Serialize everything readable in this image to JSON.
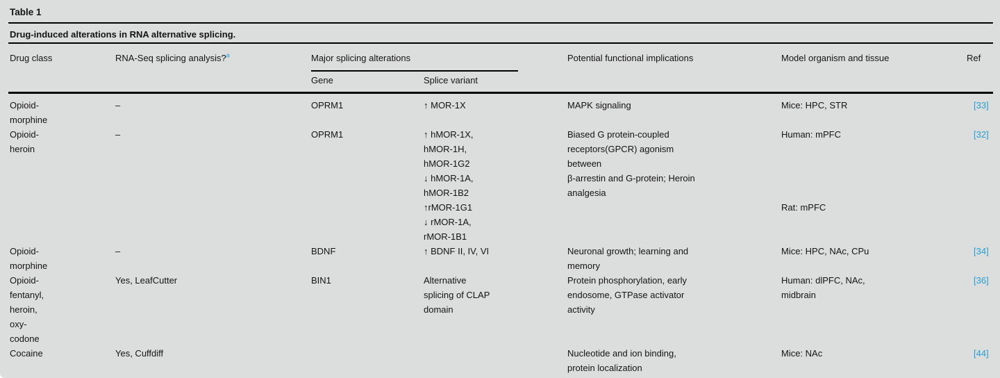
{
  "page": {
    "background_color": "#dcdddd",
    "rule_color": "#000000",
    "link_color": "#279fd5"
  },
  "header": {
    "table_label": "Table 1",
    "caption": "Drug-induced alterations in RNA alternative splicing.",
    "columns": {
      "drug_class": "Drug class",
      "rna_seq": "RNA-Seq splicing analysis?",
      "rna_seq_footnote_marker": "a",
      "major_group": "Major splicing alterations",
      "gene": "Gene",
      "splice_variant": "Splice variant",
      "implications": "Potential functional implications",
      "model": "Model organism and tissue",
      "ref": "Ref"
    }
  },
  "table": {
    "rows": [
      {
        "drug_class": "Opioid-\nmorphine",
        "rna_seq": "–",
        "gene": "OPRM1",
        "splice_variant": "↑ MOR-1X",
        "implications": "MAPK signaling",
        "model": "Mice: HPC, STR",
        "ref": "[33]"
      },
      {
        "drug_class": "Opioid-\nheroin",
        "rna_seq": "–",
        "gene": "OPRM1",
        "splice_variant": "↑ hMOR-1X,\nhMOR-1H,\nhMOR-1G2\n↓ hMOR-1A,\nhMOR-1B2\n↑rMOR-1G1\n↓ rMOR-1A,\nrMOR-1B1",
        "implications": "Biased G protein-coupled\nreceptors(GPCR) agonism\nbetween\nβ-arrestin and G-protein; Heroin\nanalgesia",
        "model": "Human: mPFC\n\n\n\n\nRat: mPFC",
        "ref": "[32]"
      },
      {
        "drug_class": "Opioid-\nmorphine",
        "rna_seq": "–",
        "gene": "BDNF",
        "splice_variant": "↑ BDNF II, IV, VI",
        "implications": "Neuronal growth; learning and\nmemory",
        "model": "Mice: HPC, NAc, CPu",
        "ref": "[34]"
      },
      {
        "drug_class": "Opioid-\nfentanyl,\nheroin,\noxy-\ncodone",
        "rna_seq": "Yes, LeafCutter",
        "gene": "BIN1",
        "splice_variant": "Alternative\nsplicing of CLAP\ndomain",
        "implications": "Protein phosphorylation, early\nendosome, GTPase activator\nactivity",
        "model": "Human: dlPFC, NAc,\nmidbrain",
        "ref": "[36]"
      },
      {
        "drug_class": "Cocaine",
        "rna_seq": "Yes, Cuffdiff",
        "gene": "",
        "splice_variant": "",
        "implications": "Nucleotide and ion binding,\nprotein localization",
        "model": "Mice: NAc",
        "ref": "[44]"
      }
    ]
  }
}
